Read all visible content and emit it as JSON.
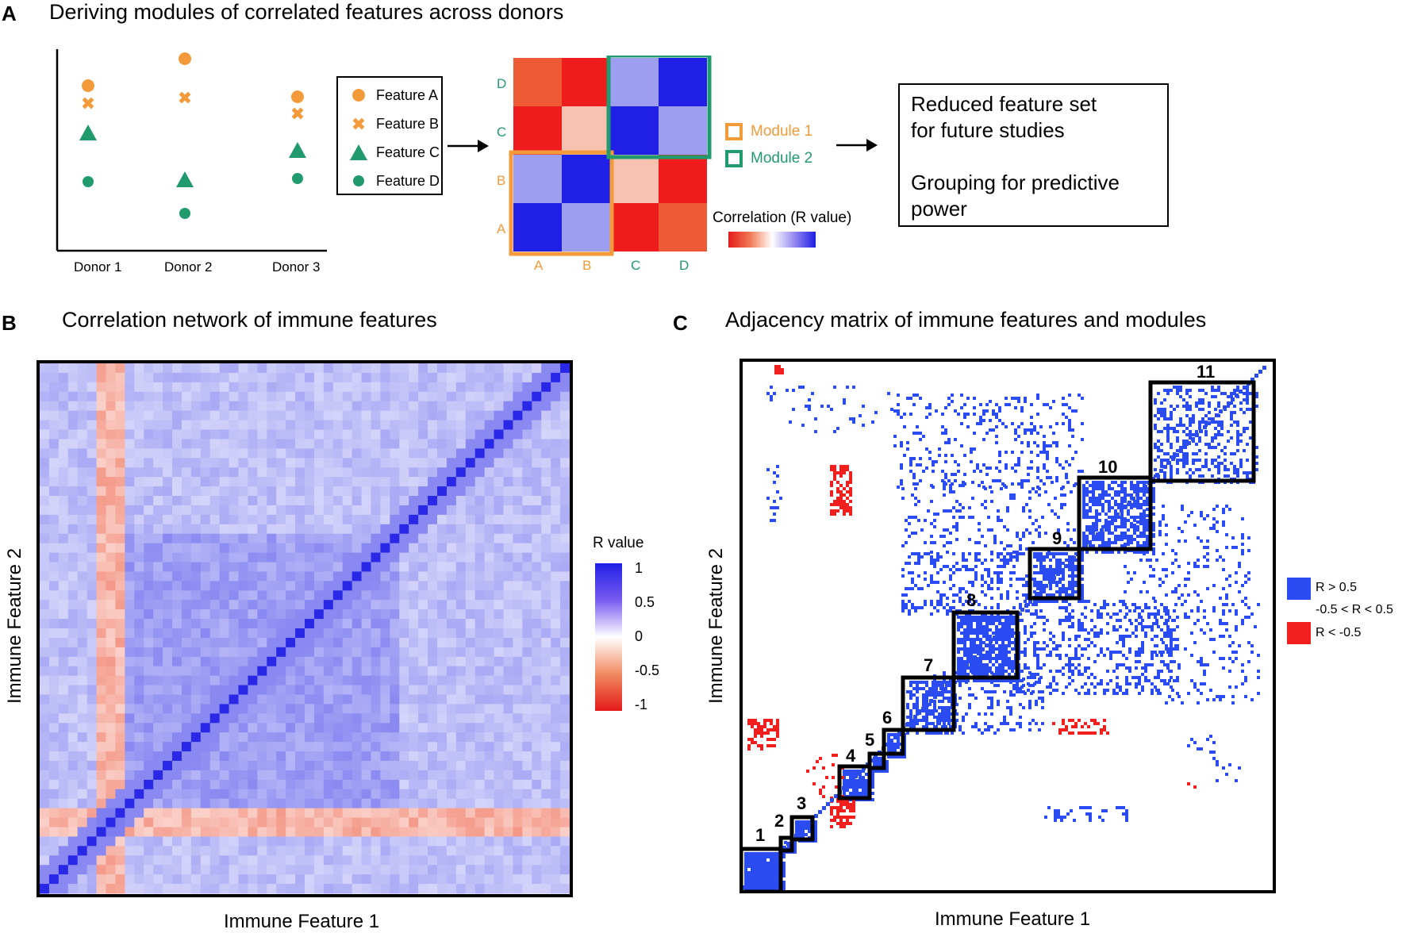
{
  "panel_a": {
    "letter": "A",
    "title": "Deriving modules of correlated features across donors",
    "donors": [
      "Donor 1",
      "Donor 2",
      "Donor 3"
    ],
    "features": [
      {
        "label": "Feature A",
        "shape": "circle",
        "color": "#f39a3a"
      },
      {
        "label": "Feature B",
        "shape": "cross",
        "color": "#f39a3a"
      },
      {
        "label": "Feature C",
        "shape": "triangle",
        "color": "#219a6e"
      },
      {
        "label": "Feature D",
        "shape": "dot",
        "color": "#219a6e"
      }
    ],
    "matrix_rows": [
      "D",
      "C",
      "B",
      "A"
    ],
    "matrix_cols": [
      "A",
      "B",
      "C",
      "D"
    ],
    "modules": [
      {
        "label": "Module 1",
        "color": "#f39a3a"
      },
      {
        "label": "Module 2",
        "color": "#219a6e"
      }
    ],
    "colorbar_title": "Correlation (R value)",
    "outcome_line1": "Reduced feature set",
    "outcome_line2": "for future studies",
    "outcome_line3": "Grouping for predictive",
    "outcome_line4": "power"
  },
  "panel_b": {
    "letter": "B",
    "title": "Correlation network of immune features",
    "xlabel": "Immune Feature 1",
    "ylabel": "Immune Feature 2",
    "legend_title": "R value",
    "legend_ticks": [
      "1",
      "0.5",
      "0",
      "-0.5",
      "-1"
    ]
  },
  "panel_c": {
    "letter": "C",
    "title": "Adjacency matrix of immune features and modules",
    "xlabel": "Immune Feature 1",
    "ylabel": "Immune Feature 2",
    "module_numbers": [
      "1",
      "2",
      "3",
      "4",
      "5",
      "6",
      "7",
      "8",
      "9",
      "10",
      "11"
    ],
    "legend": [
      {
        "label": "R > 0.5",
        "color": "#2b4cf2"
      },
      {
        "label": "-0.5 < R < 0.5",
        "color": "#ffffff"
      },
      {
        "label": "R < -0.5",
        "color": "#f21f1f"
      }
    ]
  },
  "colors": {
    "orange": "#f39a3a",
    "green": "#219a6e",
    "blue": "#2b4cf2",
    "red": "#f21f1f"
  }
}
